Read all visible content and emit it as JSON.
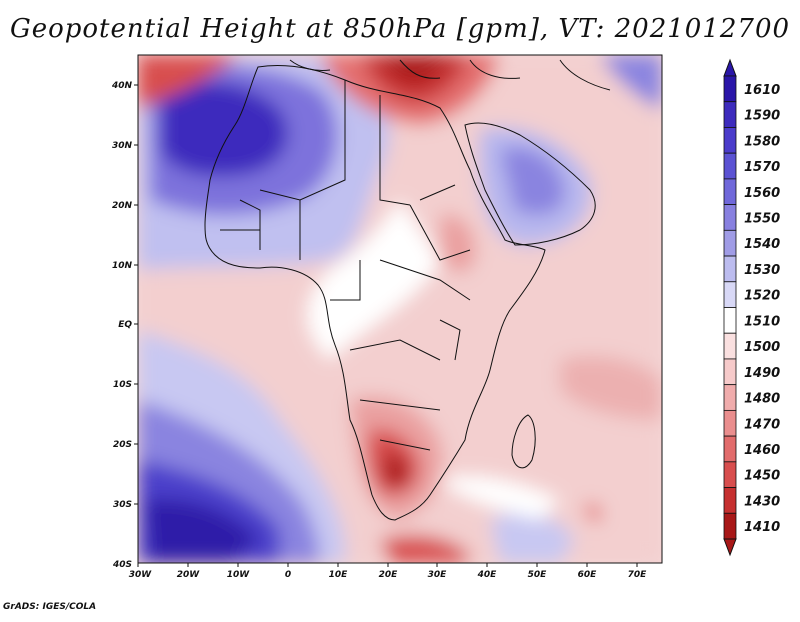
{
  "title": "Geopotential Height at 850hPa [gpm], VT: 2021012700",
  "footer": "GrADS: IGES/COLA",
  "map": {
    "lat_labels": [
      "40N",
      "30N",
      "20N",
      "10N",
      "EQ",
      "10S",
      "20S",
      "30S",
      "40S"
    ],
    "lon_labels": [
      "30W",
      "20W",
      "10W",
      "0",
      "10E",
      "20E",
      "30E",
      "40E",
      "50E",
      "60E",
      "70E"
    ]
  },
  "colorbar": {
    "levels": [
      "1610",
      "1590",
      "1580",
      "1570",
      "1560",
      "1550",
      "1540",
      "1530",
      "1520",
      "1510",
      "1500",
      "1490",
      "1480",
      "1470",
      "1460",
      "1450",
      "1430",
      "1410"
    ],
    "colors": [
      "#2a16a8",
      "#3d2bbd",
      "#4b3ccb",
      "#5b52d3",
      "#7068da",
      "#8880e0",
      "#a09ce6",
      "#bcbcef",
      "#d8d8f6",
      "#ffffff",
      "#fae0e0",
      "#f6caca",
      "#f0acac",
      "#ea8e8e",
      "#e26c6c",
      "#d84e4e",
      "#c63030",
      "#a81818"
    ]
  }
}
